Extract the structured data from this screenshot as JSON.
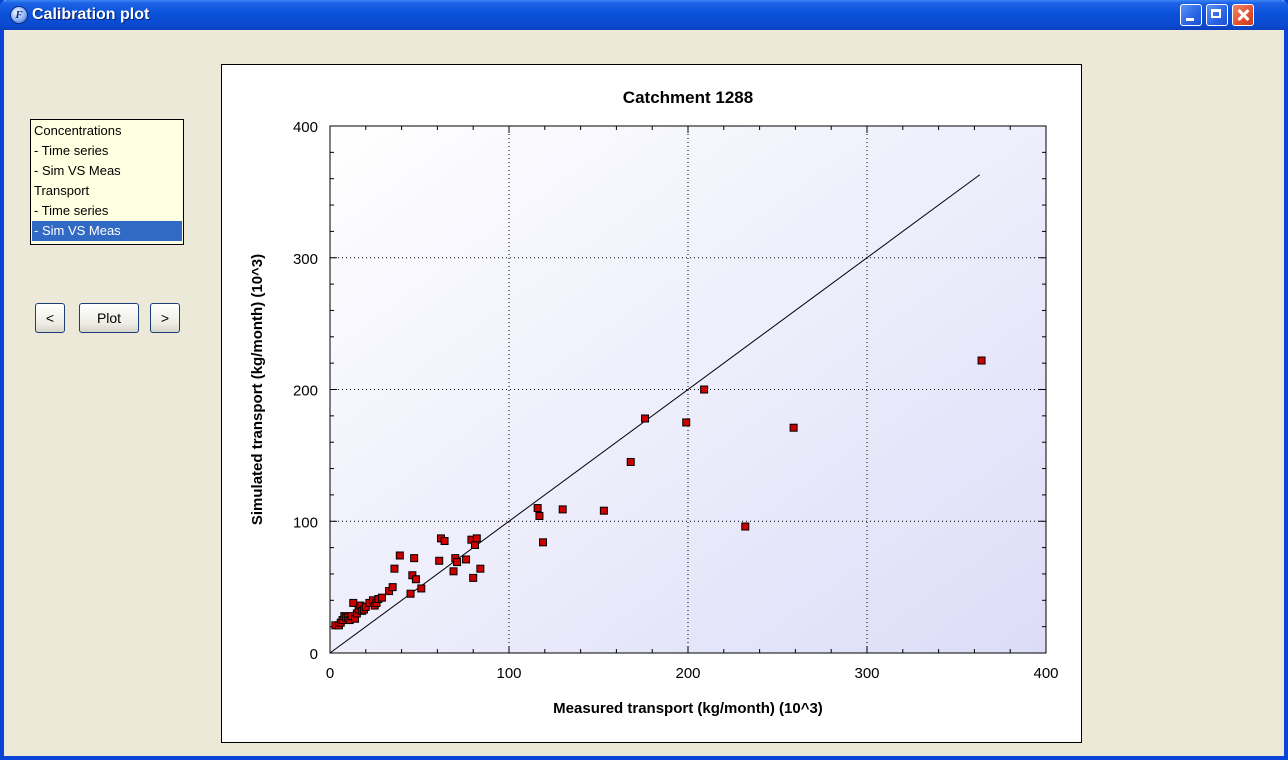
{
  "window": {
    "title": "Calibration plot",
    "app_icon_glyph": "F",
    "controls": [
      "minimize",
      "maximize",
      "close"
    ]
  },
  "nav_list": {
    "items": [
      {
        "label": "Concentrations",
        "selected": false
      },
      {
        "label": "- Time series",
        "selected": false
      },
      {
        "label": "- Sim VS Meas",
        "selected": false
      },
      {
        "label": "Transport",
        "selected": false
      },
      {
        "label": "- Time series",
        "selected": false
      },
      {
        "label": "- Sim VS Meas",
        "selected": true
      }
    ]
  },
  "buttons": {
    "prev_label": "<",
    "plot_label": "Plot",
    "next_label": ">"
  },
  "colors": {
    "title_bar": "#0A52DA",
    "list_background": "#FFFFE1",
    "selection": "#316AC5",
    "marker_fill": "#CC0000",
    "plot_gradient_start": "#FFFFFF",
    "plot_gradient_end": "#DCDCF8"
  },
  "chart_data": {
    "type": "scatter",
    "title": "Catchment 1288",
    "xlabel": "Measured transport (kg/month) (10^3)",
    "ylabel": "Simulated transport (kg/month) (10^3)",
    "xlim": [
      0,
      400
    ],
    "ylim": [
      0,
      400
    ],
    "xticks": [
      0,
      100,
      200,
      300,
      400
    ],
    "yticks": [
      0,
      100,
      200,
      300,
      400
    ],
    "grid": true,
    "grid_style": "dotted",
    "legend": "none",
    "reference_line": {
      "x": [
        0,
        363
      ],
      "y": [
        0,
        363
      ]
    },
    "series": [
      {
        "marker": "square",
        "points": [
          [
            3,
            21
          ],
          [
            5,
            21
          ],
          [
            6,
            23
          ],
          [
            7,
            25
          ],
          [
            8,
            28
          ],
          [
            9,
            27
          ],
          [
            10,
            27
          ],
          [
            11,
            25
          ],
          [
            12,
            28
          ],
          [
            13,
            38
          ],
          [
            14,
            26
          ],
          [
            15,
            30
          ],
          [
            16,
            33
          ],
          [
            17,
            36
          ],
          [
            18,
            32
          ],
          [
            19,
            33
          ],
          [
            20,
            35
          ],
          [
            22,
            38
          ],
          [
            24,
            40
          ],
          [
            25,
            36
          ],
          [
            26,
            38
          ],
          [
            27,
            41
          ],
          [
            29,
            42
          ],
          [
            33,
            47
          ],
          [
            35,
            50
          ],
          [
            36,
            64
          ],
          [
            39,
            74
          ],
          [
            45,
            45
          ],
          [
            46,
            59
          ],
          [
            47,
            72
          ],
          [
            48,
            56
          ],
          [
            51,
            49
          ],
          [
            61,
            70
          ],
          [
            62,
            87
          ],
          [
            64,
            85
          ],
          [
            69,
            62
          ],
          [
            70,
            72
          ],
          [
            71,
            69
          ],
          [
            76,
            71
          ],
          [
            79,
            86
          ],
          [
            80,
            57
          ],
          [
            81,
            82
          ],
          [
            82,
            87
          ],
          [
            84,
            64
          ],
          [
            116,
            110
          ],
          [
            117,
            104
          ],
          [
            119,
            84
          ],
          [
            130,
            109
          ],
          [
            153,
            108
          ],
          [
            168,
            145
          ],
          [
            176,
            178
          ],
          [
            199,
            175
          ],
          [
            209,
            200
          ],
          [
            232,
            96
          ],
          [
            259,
            171
          ],
          [
            364,
            222
          ]
        ]
      }
    ]
  }
}
